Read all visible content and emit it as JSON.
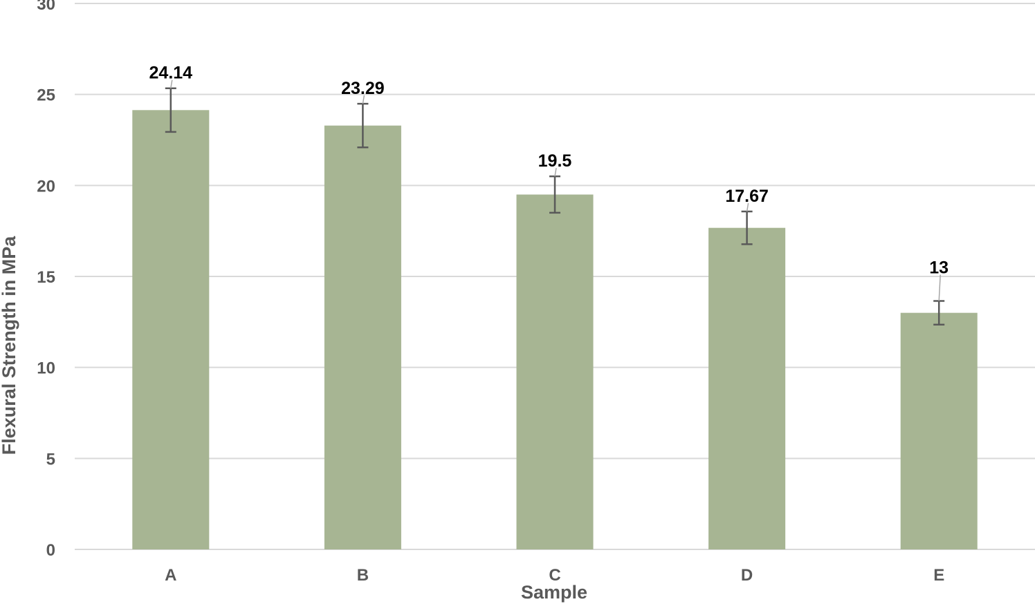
{
  "chart_data": {
    "type": "bar",
    "title": "",
    "xlabel": "Sample",
    "ylabel": "Flexural Strength in MPa",
    "categories": [
      "A",
      "B",
      "C",
      "D",
      "E"
    ],
    "values": [
      24.14,
      23.29,
      19.5,
      17.67,
      13
    ],
    "value_labels": [
      "24.14",
      "23.29",
      "19.5",
      "17.67",
      "13"
    ],
    "error": [
      1.2,
      1.2,
      1.0,
      0.9,
      0.65
    ],
    "ylim": [
      0,
      30
    ],
    "yticks": [
      0,
      5,
      10,
      15,
      20,
      25,
      30
    ],
    "grid": true,
    "legend": "none",
    "colors": {
      "bar": "#a7b593",
      "error_bar": "#595959"
    }
  }
}
